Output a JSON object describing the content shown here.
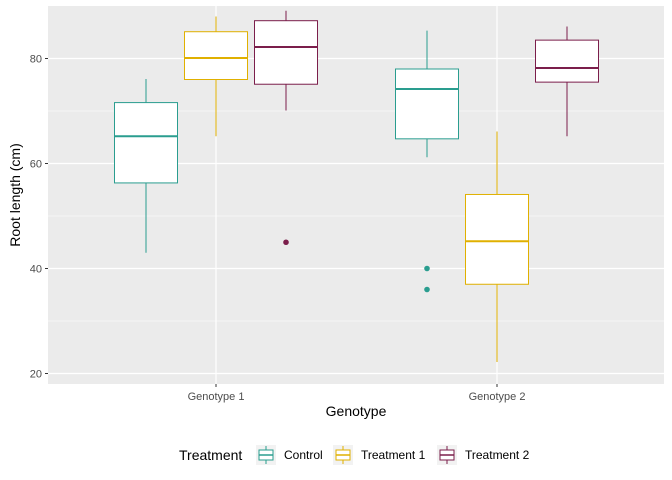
{
  "chart_data": {
    "type": "boxplot",
    "title": "",
    "xlabel": "Genotype",
    "ylabel": "Root length (cm)",
    "categories": [
      "Genotype 1",
      "Genotype 2"
    ],
    "ylim": [
      18,
      90
    ],
    "yticks": [
      20,
      40,
      60,
      80
    ],
    "grid": true,
    "legend": {
      "title": "Treatment",
      "position": "bottom"
    },
    "series": [
      {
        "name": "Control",
        "color": "#2a9d8f",
        "boxes": [
          {
            "category": "Genotype 1",
            "whisker_low": 43,
            "q1": 56.3,
            "median": 65.2,
            "q3": 71.6,
            "whisker_high": 76.1,
            "outliers": []
          },
          {
            "category": "Genotype 2",
            "whisker_low": 61.2,
            "q1": 64.7,
            "median": 74.2,
            "q3": 78.0,
            "whisker_high": 85.3,
            "outliers": [
              40.0,
              36.0
            ]
          }
        ]
      },
      {
        "name": "Treatment 1",
        "color": "#e0b000",
        "boxes": [
          {
            "category": "Genotype 1",
            "whisker_low": 65.2,
            "q1": 76.0,
            "median": 80.1,
            "q3": 85.1,
            "whisker_high": 88.0,
            "outliers": []
          },
          {
            "category": "Genotype 2",
            "whisker_low": 22.2,
            "q1": 37.0,
            "median": 45.2,
            "q3": 54.1,
            "whisker_high": 66.1,
            "outliers": []
          }
        ]
      },
      {
        "name": "Treatment 2",
        "color": "#7b1e4b",
        "boxes": [
          {
            "category": "Genotype 1",
            "whisker_low": 70.1,
            "q1": 75.1,
            "median": 82.2,
            "q3": 87.2,
            "whisker_high": 89.1,
            "outliers": [
              45.0
            ]
          },
          {
            "category": "Genotype 2",
            "whisker_low": 65.2,
            "q1": 75.5,
            "median": 78.2,
            "q3": 83.5,
            "whisker_high": 86.1,
            "outliers": []
          }
        ]
      }
    ]
  }
}
